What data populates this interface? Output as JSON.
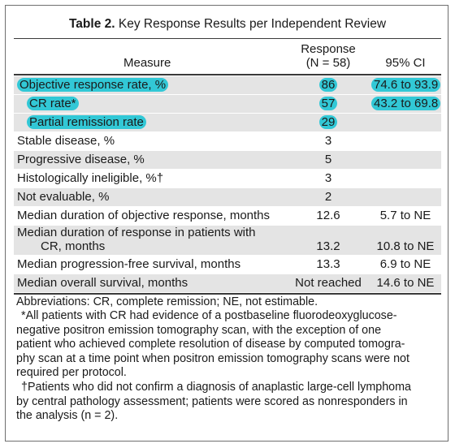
{
  "table": {
    "title_bold": "Table 2.",
    "title_rest": " Key Response Results per Independent Review",
    "headers": {
      "measure": "Measure",
      "response_line1": "Response",
      "response_line2": "(N = 58)",
      "ci": "95% CI"
    },
    "rows": [
      {
        "measure": "Objective response rate, %",
        "response": "86",
        "ci": "74.6 to 93.9"
      },
      {
        "measure": "CR rate*",
        "response": "57",
        "ci": "43.2 to 69.8"
      },
      {
        "measure": "Partial remission rate",
        "response": "29",
        "ci": ""
      },
      {
        "measure": "Stable disease, %",
        "response": "3",
        "ci": ""
      },
      {
        "measure": "Progressive disease, %",
        "response": "5",
        "ci": ""
      },
      {
        "measure": "Histologically ineligible, %†",
        "response": "3",
        "ci": ""
      },
      {
        "measure": "Not evaluable, %",
        "response": "2",
        "ci": ""
      },
      {
        "measure": "Median duration of objective response, months",
        "response": "12.6",
        "ci": "5.7 to NE"
      },
      {
        "measure_line1": "Median duration of response in patients with",
        "measure_line2": "CR, months",
        "response": "13.2",
        "ci": "10.8 to NE"
      },
      {
        "measure": "Median progression-free survival, months",
        "response": "13.3",
        "ci": "6.9 to NE"
      },
      {
        "measure": "Median overall survival, months",
        "response": "Not reached",
        "ci": "14.6 to NE"
      }
    ],
    "footnotes": {
      "abbrev": "Abbreviations: CR, complete remission; NE, not estimable.",
      "star": [
        "*All patients with CR had evidence of a postbaseline fluorodeoxyglucose-",
        "negative positron emission tomography scan, with the exception of one",
        "patient who achieved complete resolution of disease by computed tomogra-",
        "phy scan at a time point when positron emission tomography scans were not",
        "required per protocol."
      ],
      "dagger": [
        "†Patients who did not confirm a diagnosis of anaplastic large-cell lymphoma",
        "by central pathology assessment; patients were scored as nonresponders in",
        "the analysis (n = 2)."
      ]
    },
    "highlight_color": "#32c8d6"
  }
}
